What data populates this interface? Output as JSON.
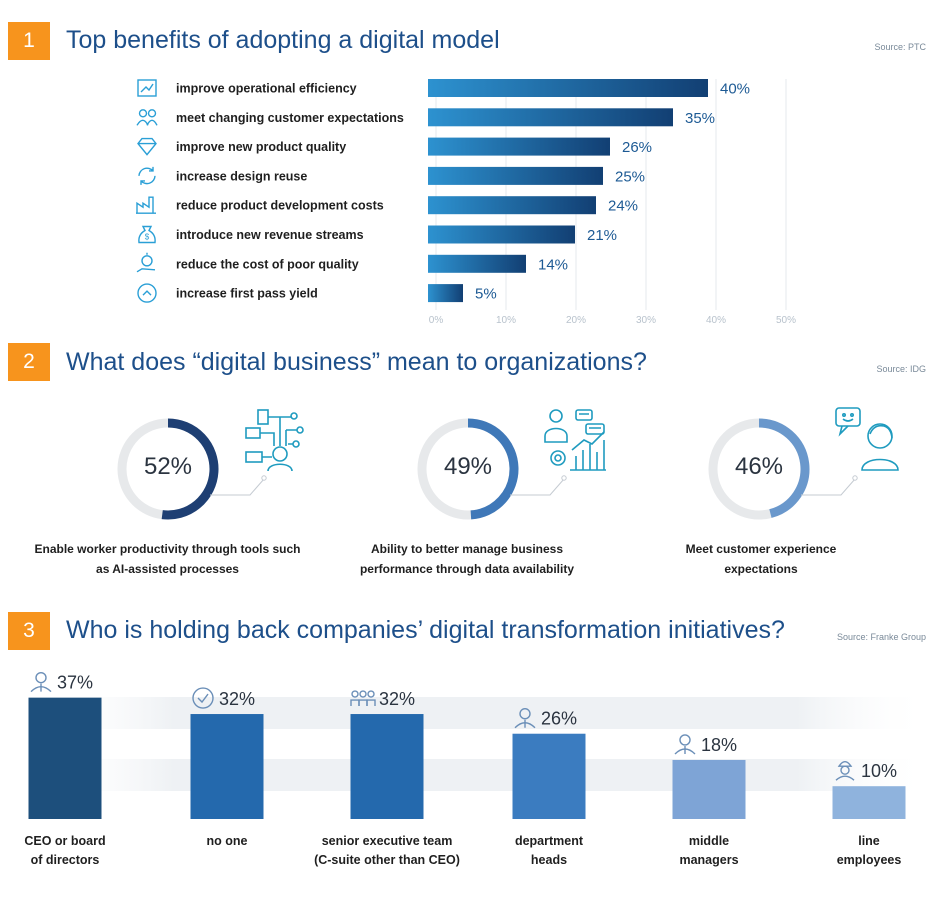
{
  "section1": {
    "number": "1",
    "title": "Top benefits of adopting a digital model",
    "source": "Source: PTC"
  },
  "section2": {
    "number": "2",
    "title": "What does “digital business” mean to organizations?",
    "source": "Source: IDG",
    "items": [
      {
        "value": "52%",
        "caption": "Enable worker productivity through tools such as AI-assisted processes"
      },
      {
        "value": "49%",
        "caption": "Ability to better manage business performance through data availability"
      },
      {
        "value": "46%",
        "caption": "Meet customer experience expectations"
      }
    ]
  },
  "section3": {
    "number": "3",
    "title": "Who is holding back companies’ digital transformation initiatives?",
    "source": "Source: Franke Group"
  },
  "colors": {
    "accent": "#f7941d",
    "title": "#1d4f8a",
    "bar_dark": "#1d4f7c",
    "bar_light": "#8fb3dd"
  },
  "chart_data": [
    {
      "type": "bar",
      "orientation": "horizontal",
      "title": "Top benefits of adopting a digital model",
      "categories": [
        "improve operational efficiency",
        "meet changing customer expectations",
        "improve new product quality",
        "increase design reuse",
        "reduce product development costs",
        "introduce new revenue streams",
        "reduce the cost of poor quality",
        "increase first pass yield"
      ],
      "icons": [
        "chart-icon",
        "people-icon",
        "diamond-icon",
        "recycle-icon",
        "factory-icon",
        "money-bag-icon",
        "hand-coin-icon",
        "chevron-up-icon"
      ],
      "values": [
        40,
        35,
        26,
        25,
        24,
        21,
        14,
        5
      ],
      "value_labels": [
        "40%",
        "35%",
        "26%",
        "25%",
        "24%",
        "21%",
        "14%",
        "5%"
      ],
      "xticks": [
        "0%",
        "10%",
        "20%",
        "30%",
        "40%",
        "50%"
      ],
      "xlim": [
        0,
        50
      ],
      "grid": true
    },
    {
      "type": "pie",
      "title": "What does “digital business” mean to organizations?",
      "categories": [
        "Enable worker productivity through tools such as AI-assisted processes",
        "Ability to better manage business performance through data availability",
        "Meet customer experience expectations"
      ],
      "values": [
        52,
        49,
        46
      ],
      "value_labels": [
        "52%",
        "49%",
        "46%"
      ]
    },
    {
      "type": "bar",
      "title": "Who is holding back companies’ digital transformation initiatives?",
      "categories": [
        "CEO or board of directors",
        "no one",
        "senior executive team (C-suite other than CEO)",
        "department heads",
        "middle managers",
        "line employees"
      ],
      "label_lines": [
        [
          "CEO or board",
          "of directors"
        ],
        [
          "no one"
        ],
        [
          "senior executive team",
          "(C-suite other than CEO)"
        ],
        [
          "department",
          "heads"
        ],
        [
          "middle",
          "managers"
        ],
        [
          "line",
          "employees"
        ]
      ],
      "icons": [
        "businessman-icon",
        "check-circle-icon",
        "team-icon",
        "manager-icon",
        "manager-icon",
        "worker-icon"
      ],
      "values": [
        37,
        32,
        32,
        26,
        18,
        10
      ],
      "value_labels": [
        "37%",
        "32%",
        "32%",
        "26%",
        "18%",
        "10%"
      ],
      "ylim": [
        0,
        40
      ]
    }
  ]
}
